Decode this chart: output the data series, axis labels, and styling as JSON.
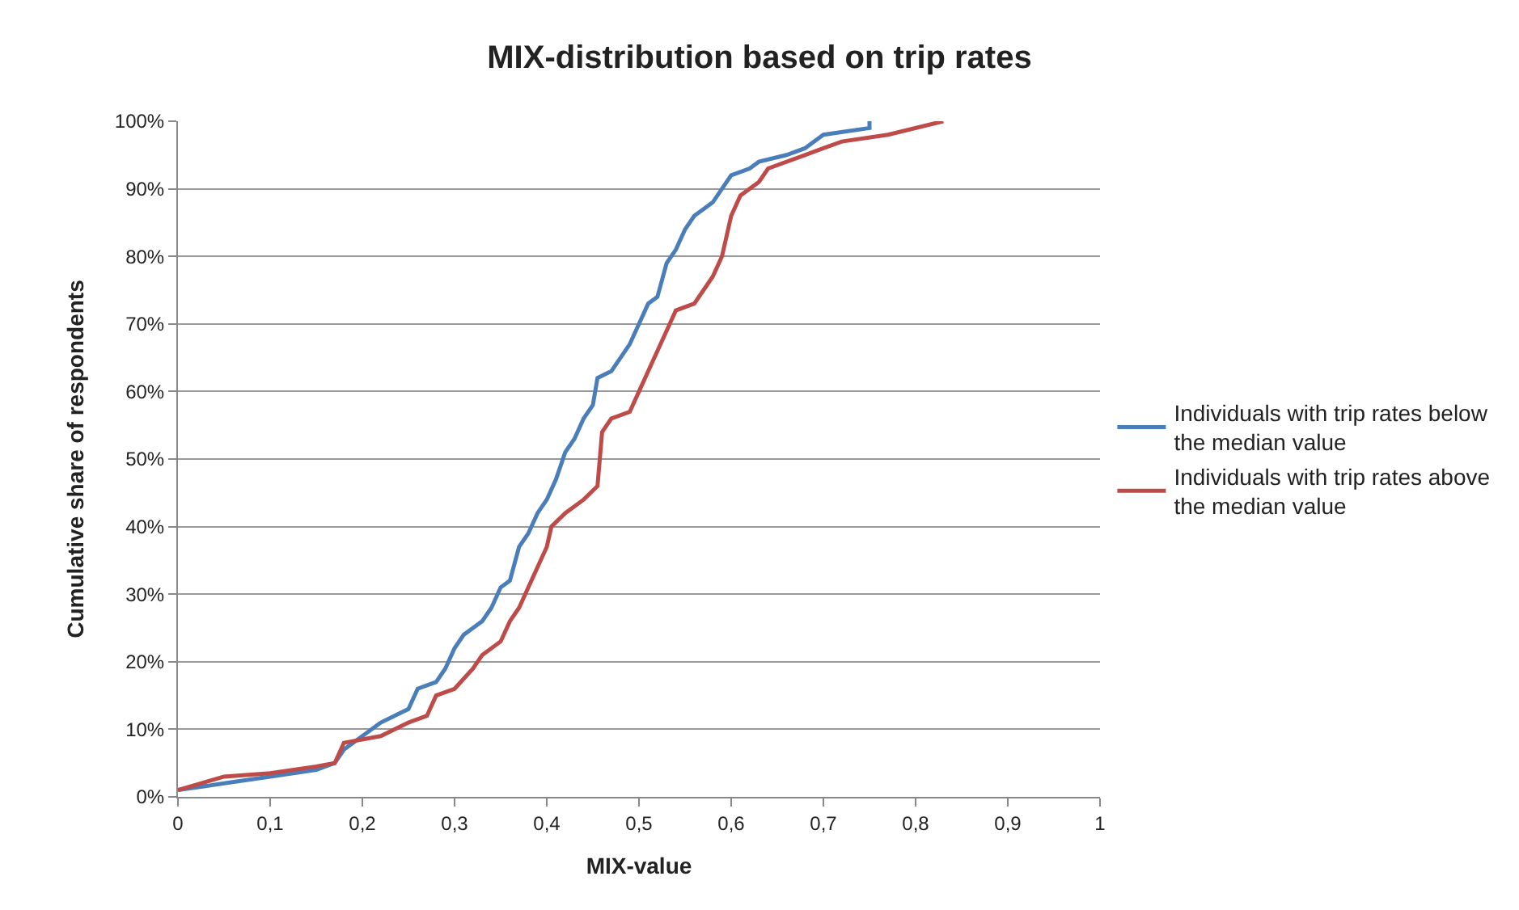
{
  "chart_data": {
    "type": "line",
    "title": "MIX-distribution based on trip rates",
    "xlabel": "MIX-value",
    "ylabel": "Cumulative share of respondents",
    "xlim": [
      0,
      1
    ],
    "xticks": [
      0,
      {
        "value": 0.1,
        "label": "0,1"
      },
      {
        "value": 0.2,
        "label": "0,2"
      },
      {
        "value": 0.3,
        "label": "0,3"
      },
      {
        "value": 0.4,
        "label": "0,4"
      },
      {
        "value": 0.5,
        "label": "0,5"
      },
      {
        "value": 0.6,
        "label": "0,6"
      },
      {
        "value": 0.7,
        "label": "0,7"
      },
      {
        "value": 0.8,
        "label": "0,8"
      },
      {
        "value": 0.9,
        "label": "0,9"
      },
      1
    ],
    "ylim": [
      0,
      100
    ],
    "yticks": [
      {
        "value": 0,
        "label": "0%"
      },
      {
        "value": 10,
        "label": "10%"
      },
      {
        "value": 20,
        "label": "20%"
      },
      {
        "value": 30,
        "label": "30%"
      },
      {
        "value": 40,
        "label": "40%"
      },
      {
        "value": 50,
        "label": "50%"
      },
      {
        "value": 60,
        "label": "60%"
      },
      {
        "value": 70,
        "label": "70%"
      },
      {
        "value": 80,
        "label": "80%"
      },
      {
        "value": 90,
        "label": "90%"
      },
      {
        "value": 100,
        "label": "100%"
      }
    ],
    "grid": "y",
    "legend": "right",
    "marker": "none",
    "line_style": "solid",
    "series": [
      {
        "name": "Individuals with trip rates below the median value",
        "color": "#4a7ebb",
        "x": [
          0,
          0.05,
          0.1,
          0.15,
          0.17,
          0.18,
          0.2,
          0.22,
          0.25,
          0.26,
          0.28,
          0.29,
          0.3,
          0.31,
          0.32,
          0.33,
          0.34,
          0.35,
          0.36,
          0.37,
          0.38,
          0.39,
          0.4,
          0.41,
          0.42,
          0.43,
          0.44,
          0.45,
          0.455,
          0.47,
          0.48,
          0.49,
          0.5,
          0.51,
          0.52,
          0.53,
          0.54,
          0.55,
          0.56,
          0.57,
          0.58,
          0.59,
          0.6,
          0.62,
          0.63,
          0.66,
          0.68,
          0.7,
          0.75,
          0.75
        ],
        "values": [
          1,
          2,
          3,
          4,
          5,
          7,
          9,
          11,
          13,
          16,
          17,
          19,
          22,
          24,
          25,
          26,
          28,
          31,
          32,
          37,
          39,
          42,
          44,
          47,
          51,
          53,
          56,
          58,
          62,
          63,
          65,
          67,
          70,
          73,
          74,
          79,
          81,
          84,
          86,
          87,
          88,
          90,
          92,
          93,
          94,
          95,
          96,
          98,
          99,
          100
        ]
      },
      {
        "name": "Individuals with trip rates above the median value",
        "color": "#be4b48",
        "x": [
          0,
          0.05,
          0.1,
          0.15,
          0.17,
          0.18,
          0.22,
          0.25,
          0.27,
          0.28,
          0.3,
          0.32,
          0.33,
          0.35,
          0.36,
          0.37,
          0.38,
          0.39,
          0.4,
          0.405,
          0.42,
          0.44,
          0.455,
          0.46,
          0.47,
          0.49,
          0.5,
          0.51,
          0.52,
          0.53,
          0.54,
          0.56,
          0.57,
          0.58,
          0.59,
          0.6,
          0.61,
          0.63,
          0.64,
          0.68,
          0.7,
          0.72,
          0.77,
          0.83
        ],
        "values": [
          1,
          3,
          3.5,
          4.5,
          5,
          8,
          9,
          11,
          12,
          15,
          16,
          19,
          21,
          23,
          26,
          28,
          31,
          34,
          37,
          40,
          42,
          44,
          46,
          54,
          56,
          57,
          60,
          63,
          66,
          69,
          72,
          73,
          75,
          77,
          80,
          86,
          89,
          91,
          93,
          95,
          96,
          97,
          98,
          100
        ]
      }
    ]
  }
}
